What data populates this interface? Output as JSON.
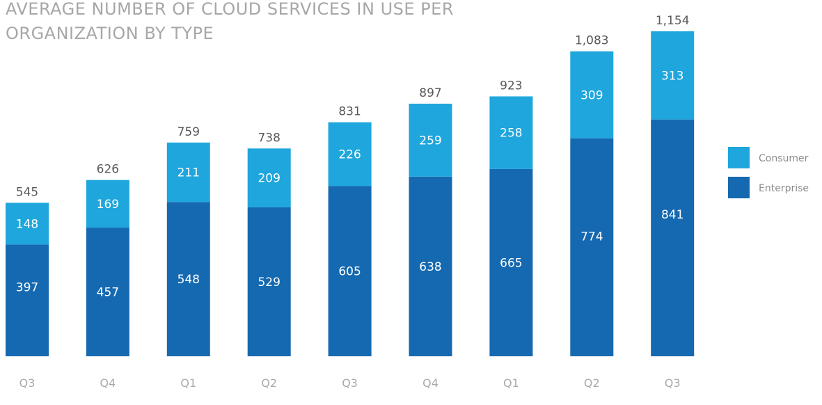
{
  "title": "AVERAGE NUMBER OF CLOUD SERVICES IN USE PER ORGANIZATION BY TYPE",
  "colors": {
    "consumer": "#1ea6dd",
    "enterprise": "#1569b0",
    "total_label": "#595959",
    "segment_label": "#ffffff",
    "tick_label": "#a9a9a9",
    "legend_label": "#8c8c8c"
  },
  "chart_data": {
    "type": "bar",
    "stacked": true,
    "title": "AVERAGE NUMBER OF CLOUD SERVICES IN USE PER ORGANIZATION BY TYPE",
    "xlabel": "",
    "ylabel": "",
    "categories": [
      "Q3",
      "Q4",
      "Q1",
      "Q2",
      "Q3",
      "Q4",
      "Q1",
      "Q2",
      "Q3"
    ],
    "series": [
      {
        "name": "Enterprise",
        "values": [
          397,
          457,
          548,
          529,
          605,
          638,
          665,
          774,
          841
        ]
      },
      {
        "name": "Consumer",
        "values": [
          148,
          169,
          211,
          209,
          226,
          259,
          258,
          309,
          313
        ]
      }
    ],
    "totals": [
      "545",
      "626",
      "759",
      "738",
      "831",
      "897",
      "923",
      "1,083",
      "1,154"
    ],
    "legend": {
      "position": "right",
      "items": [
        "Consumer",
        "Enterprise"
      ]
    },
    "grid": false
  }
}
